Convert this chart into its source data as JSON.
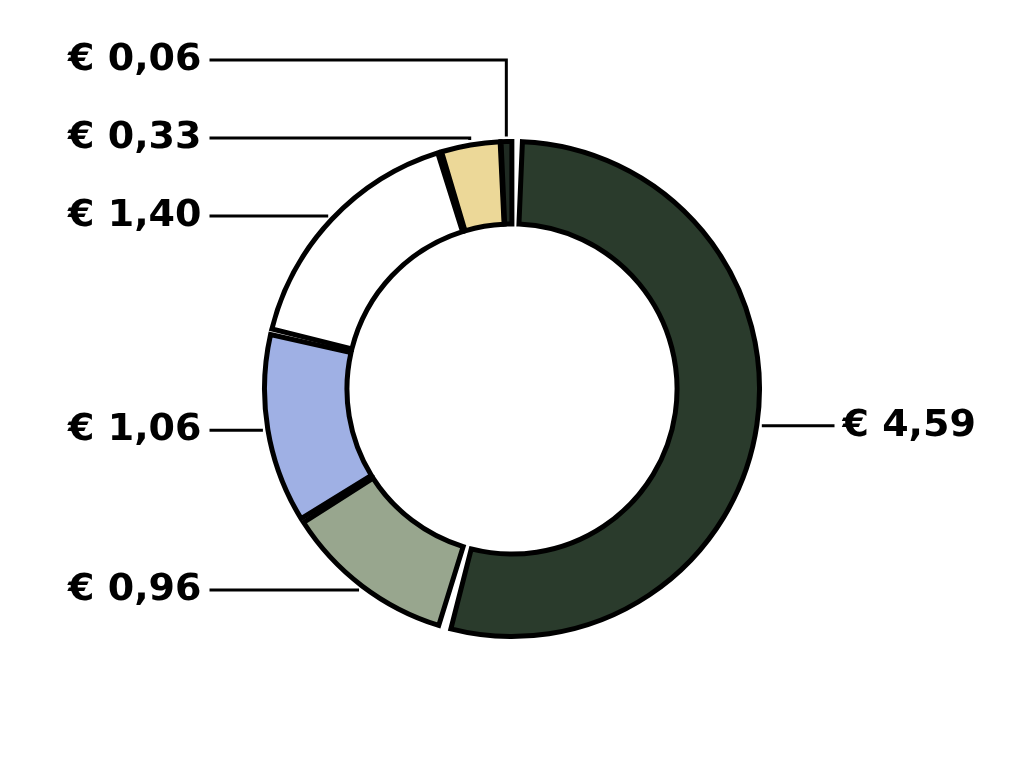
{
  "chart_data": {
    "type": "donut",
    "categories": [
      null,
      null,
      null,
      null,
      null,
      null
    ],
    "values": [
      4.59,
      0.96,
      1.06,
      1.4,
      0.33,
      0.06
    ],
    "colors": [
      "#2a3b2c",
      "#98a68e",
      "#9fb0e4",
      "#ffffff",
      "#ecd898",
      "#1f2a22"
    ],
    "value_labels": [
      "€ 4,59",
      "€ 0,96",
      "€ 1,06",
      "€ 1,40",
      "€ 0,33",
      "€ 0,06"
    ],
    "legend": false
  }
}
